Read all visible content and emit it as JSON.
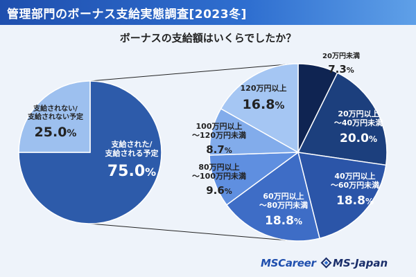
{
  "header": {
    "title": "管理部門のボーナス支給実態調査[2023冬]"
  },
  "subtitle": "ボーナスの支給額はいくらでしたか？",
  "colors": {
    "header_bg": "#2a5fc4",
    "page_bg": "#eef3fa",
    "paid": "#2d5baa",
    "not_paid": "#9dc0ef",
    "guide_lines": "#222222"
  },
  "logos": {
    "mscareer": "MSCareer",
    "msjapan": "MS-Japan",
    "msjapan_icon": "diamond-logo-icon"
  },
  "chart_data": [
    {
      "type": "pie",
      "title": "",
      "slices": [
        {
          "label_lines": [
            "支給された/",
            "支給される予定"
          ],
          "value": 75.0,
          "value_text": "75.0%",
          "color": "#2d5baa",
          "label_color": "#ffffff"
        },
        {
          "label_lines": [
            "支給されない/",
            "支給されない予定"
          ],
          "value": 25.0,
          "value_text": "25.0%",
          "color": "#9dc0ef",
          "label_color": "#222222"
        }
      ]
    },
    {
      "type": "pie",
      "title": "",
      "parent_slice": "支給された/支給される予定",
      "slices": [
        {
          "label_lines": [
            "20万円未満"
          ],
          "value": 7.3,
          "value_text": "7.3%",
          "color": "#0f2452",
          "label_color": "#222222"
        },
        {
          "label_lines": [
            "20万円以上",
            "〜40万円未満"
          ],
          "value": 20.0,
          "value_text": "20.0%",
          "color": "#1c3f7d",
          "label_color": "#ffffff"
        },
        {
          "label_lines": [
            "40万円以上",
            "〜60万円未満"
          ],
          "value": 18.8,
          "value_text": "18.8%",
          "color": "#2b55a8",
          "label_color": "#ffffff"
        },
        {
          "label_lines": [
            "60万円以上",
            "〜80万円未満"
          ],
          "value": 18.8,
          "value_text": "18.8%",
          "color": "#3e6dc6",
          "label_color": "#ffffff"
        },
        {
          "label_lines": [
            "80万円以上",
            "〜100万円未満"
          ],
          "value": 9.6,
          "value_text": "9.6%",
          "color": "#5f8fe0",
          "label_color": "#222222"
        },
        {
          "label_lines": [
            "100万円以上",
            "〜120万円未満"
          ],
          "value": 8.7,
          "value_text": "8.7%",
          "color": "#82aceb",
          "label_color": "#222222"
        },
        {
          "label_lines": [
            "120万円以上"
          ],
          "value": 16.8,
          "value_text": "16.8%",
          "color": "#a5c6f3",
          "label_color": "#222222"
        }
      ]
    }
  ]
}
